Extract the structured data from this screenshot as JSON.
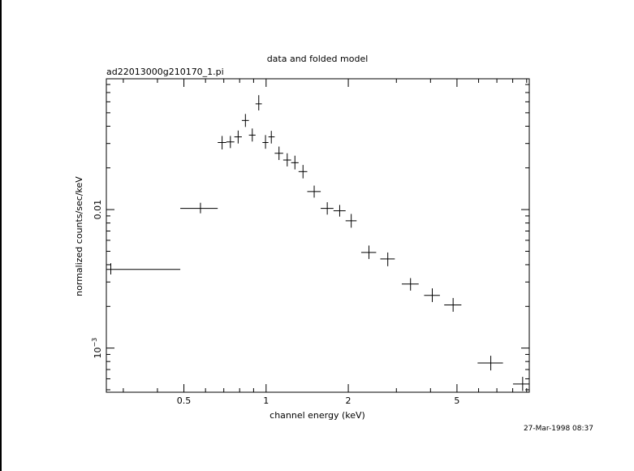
{
  "chart_data": {
    "type": "scatter",
    "title": "data and folded model",
    "subtitle": "ad22013000g210170_1.pi",
    "xlabel": "channel energy (keV)",
    "ylabel": "normalized counts/sec/keV",
    "timestamp": "27-Mar-1998 08:37",
    "x_scale": "log",
    "y_scale": "log",
    "xlim": [
      0.26,
      9.2
    ],
    "ylim": [
      0.00048,
      0.088
    ],
    "x_ticks": [
      {
        "value": 0.5,
        "label": "0.5"
      },
      {
        "value": 1,
        "label": "1"
      },
      {
        "value": 2,
        "label": "2"
      },
      {
        "value": 5,
        "label": "5"
      }
    ],
    "y_ticks": [
      {
        "value": 0.01,
        "label": "0.01"
      },
      {
        "value": 0.001,
        "label": "10",
        "sup": "−3"
      }
    ],
    "grid": false,
    "points": [
      {
        "x": 0.27,
        "xlo": 0.26,
        "xhi": 0.485,
        "y": 0.0037,
        "ylo": 0.0034,
        "yhi": 0.0041
      },
      {
        "x": 0.575,
        "xlo": 0.485,
        "xhi": 0.665,
        "y": 0.0102,
        "ylo": 0.0094,
        "yhi": 0.0112
      },
      {
        "x": 0.69,
        "xlo": 0.665,
        "xhi": 0.715,
        "y": 0.0305,
        "ylo": 0.0272,
        "yhi": 0.034
      },
      {
        "x": 0.74,
        "xlo": 0.715,
        "xhi": 0.765,
        "y": 0.0308,
        "ylo": 0.0278,
        "yhi": 0.034
      },
      {
        "x": 0.79,
        "xlo": 0.765,
        "xhi": 0.815,
        "y": 0.0335,
        "ylo": 0.03,
        "yhi": 0.0372
      },
      {
        "x": 0.84,
        "xlo": 0.815,
        "xhi": 0.865,
        "y": 0.044,
        "ylo": 0.0395,
        "yhi": 0.049
      },
      {
        "x": 0.89,
        "xlo": 0.865,
        "xhi": 0.915,
        "y": 0.0345,
        "ylo": 0.031,
        "yhi": 0.0385
      },
      {
        "x": 0.94,
        "xlo": 0.915,
        "xhi": 0.965,
        "y": 0.058,
        "ylo": 0.052,
        "yhi": 0.067
      },
      {
        "x": 0.995,
        "xlo": 0.97,
        "xhi": 1.02,
        "y": 0.0305,
        "ylo": 0.0275,
        "yhi": 0.0345
      },
      {
        "x": 1.045,
        "xlo": 1.02,
        "xhi": 1.075,
        "y": 0.0335,
        "ylo": 0.03,
        "yhi": 0.037
      },
      {
        "x": 1.115,
        "xlo": 1.075,
        "xhi": 1.155,
        "y": 0.0255,
        "ylo": 0.0228,
        "yhi": 0.0285
      },
      {
        "x": 1.195,
        "xlo": 1.155,
        "xhi": 1.235,
        "y": 0.0228,
        "ylo": 0.0205,
        "yhi": 0.0255
      },
      {
        "x": 1.275,
        "xlo": 1.235,
        "xhi": 1.315,
        "y": 0.0218,
        "ylo": 0.0195,
        "yhi": 0.0245
      },
      {
        "x": 1.365,
        "xlo": 1.315,
        "xhi": 1.415,
        "y": 0.0188,
        "ylo": 0.0168,
        "yhi": 0.021
      },
      {
        "x": 1.5,
        "xlo": 1.415,
        "xhi": 1.585,
        "y": 0.0135,
        "ylo": 0.0122,
        "yhi": 0.0149
      },
      {
        "x": 1.675,
        "xlo": 1.585,
        "xhi": 1.765,
        "y": 0.0102,
        "ylo": 0.0092,
        "yhi": 0.0113
      },
      {
        "x": 1.86,
        "xlo": 1.765,
        "xhi": 1.955,
        "y": 0.0098,
        "ylo": 0.0089,
        "yhi": 0.0108
      },
      {
        "x": 2.05,
        "xlo": 1.955,
        "xhi": 2.145,
        "y": 0.0083,
        "ylo": 0.0074,
        "yhi": 0.0093
      },
      {
        "x": 2.38,
        "xlo": 2.23,
        "xhi": 2.53,
        "y": 0.0049,
        "ylo": 0.0044,
        "yhi": 0.0055
      },
      {
        "x": 2.79,
        "xlo": 2.62,
        "xhi": 2.96,
        "y": 0.0044,
        "ylo": 0.0039,
        "yhi": 0.0049
      },
      {
        "x": 3.38,
        "xlo": 3.14,
        "xhi": 3.62,
        "y": 0.0029,
        "ylo": 0.0026,
        "yhi": 0.0032
      },
      {
        "x": 4.06,
        "xlo": 3.79,
        "xhi": 4.33,
        "y": 0.0024,
        "ylo": 0.00215,
        "yhi": 0.0027
      },
      {
        "x": 4.84,
        "xlo": 4.49,
        "xhi": 5.19,
        "y": 0.00205,
        "ylo": 0.00183,
        "yhi": 0.0023
      },
      {
        "x": 6.65,
        "xlo": 5.95,
        "xhi": 7.37,
        "y": 0.00078,
        "ylo": 0.00069,
        "yhi": 0.00088
      },
      {
        "x": 8.7,
        "xlo": 8.02,
        "xhi": 9.2,
        "y": 0.00055,
        "ylo": 0.00049,
        "yhi": 0.00062
      }
    ]
  }
}
